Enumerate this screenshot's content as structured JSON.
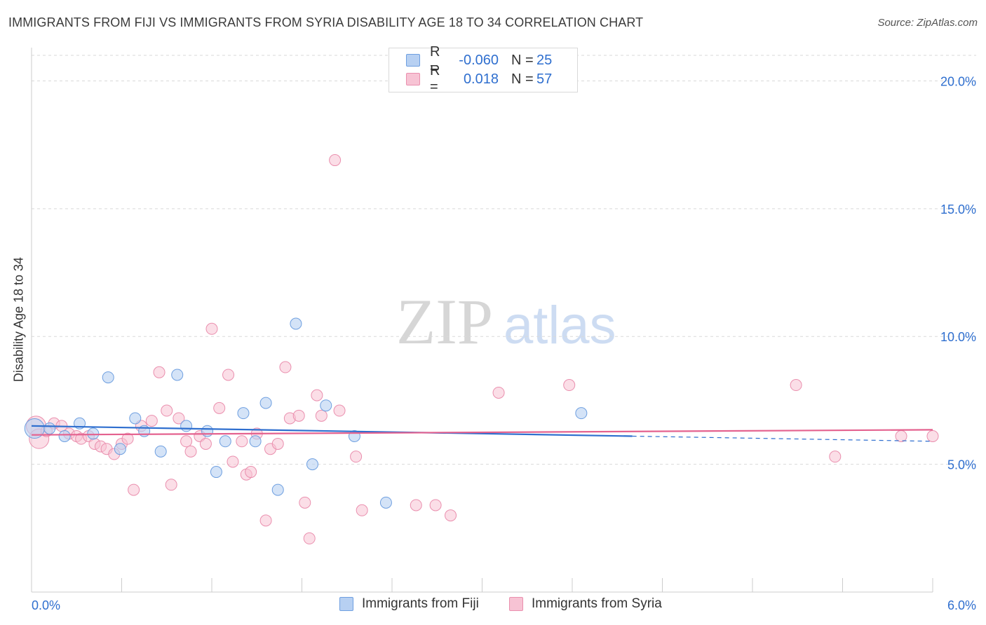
{
  "title": "IMMIGRANTS FROM FIJI VS IMMIGRANTS FROM SYRIA DISABILITY AGE 18 TO 34 CORRELATION CHART",
  "source": "Source: ZipAtlas.com",
  "watermark": {
    "zip": "ZIP",
    "atlas": "atlas"
  },
  "legend_top": {
    "rows": [
      {
        "r_label": "R =",
        "r_value": "-0.060",
        "n_label": "N =",
        "n_value": "25"
      },
      {
        "r_label": "R =",
        "r_value": "0.018",
        "n_label": "N =",
        "n_value": "57"
      }
    ]
  },
  "colors": {
    "fiji_fill": "#b7d0f2",
    "fiji_stroke": "#6e9fe0",
    "fiji_line": "#2f6fcf",
    "syria_fill": "#f7c3d4",
    "syria_stroke": "#ea8fae",
    "syria_line": "#e4628f",
    "grid": "#d9d9d9",
    "tick_label": "#2f6fcf"
  },
  "chart_data": {
    "type": "scatter",
    "title": "IMMIGRANTS FROM FIJI VS IMMIGRANTS FROM SYRIA DISABILITY AGE 18 TO 34 CORRELATION CHART",
    "xlabel": "",
    "ylabel": "Disability Age 18 to 34",
    "xlim": [
      0,
      6
    ],
    "ylim": [
      0,
      21
    ],
    "x_tick_labels": [
      "0.0%",
      "6.0%"
    ],
    "y_ticks": [
      5,
      10,
      15,
      20
    ],
    "y_tick_labels": [
      "5.0%",
      "10.0%",
      "15.0%",
      "20.0%"
    ],
    "grid": true,
    "legend_placement": "bottom",
    "series": [
      {
        "name": "Immigrants from Fiji",
        "color": "#6e9fe0",
        "points": [
          {
            "x": 0.02,
            "y": 6.4
          },
          {
            "x": 0.12,
            "y": 6.4
          },
          {
            "x": 0.22,
            "y": 6.1
          },
          {
            "x": 0.32,
            "y": 6.6
          },
          {
            "x": 0.41,
            "y": 6.2
          },
          {
            "x": 0.51,
            "y": 8.4
          },
          {
            "x": 0.59,
            "y": 5.6
          },
          {
            "x": 0.69,
            "y": 6.8
          },
          {
            "x": 0.75,
            "y": 6.3
          },
          {
            "x": 0.86,
            "y": 5.5
          },
          {
            "x": 0.97,
            "y": 8.5
          },
          {
            "x": 1.03,
            "y": 6.5
          },
          {
            "x": 1.17,
            "y": 6.3
          },
          {
            "x": 1.23,
            "y": 4.7
          },
          {
            "x": 1.29,
            "y": 5.9
          },
          {
            "x": 1.41,
            "y": 7.0
          },
          {
            "x": 1.49,
            "y": 5.9
          },
          {
            "x": 1.56,
            "y": 7.4
          },
          {
            "x": 1.64,
            "y": 4.0
          },
          {
            "x": 1.76,
            "y": 10.5
          },
          {
            "x": 1.87,
            "y": 5.0
          },
          {
            "x": 1.96,
            "y": 7.3
          },
          {
            "x": 2.15,
            "y": 6.1
          },
          {
            "x": 2.36,
            "y": 3.5
          },
          {
            "x": 3.66,
            "y": 7.0
          }
        ],
        "trend": {
          "x": [
            0,
            4.0
          ],
          "y": [
            6.5,
            6.1
          ]
        },
        "trend_dashed": {
          "x": [
            4.0,
            6.0
          ],
          "y": [
            6.1,
            5.9
          ]
        }
      },
      {
        "name": "Immigrants from Syria",
        "color": "#ea8fae",
        "points": [
          {
            "x": 0.03,
            "y": 6.5
          },
          {
            "x": 0.05,
            "y": 6.0
          },
          {
            "x": 0.1,
            "y": 6.3
          },
          {
            "x": 0.15,
            "y": 6.6
          },
          {
            "x": 0.2,
            "y": 6.5
          },
          {
            "x": 0.25,
            "y": 6.2
          },
          {
            "x": 0.3,
            "y": 6.1
          },
          {
            "x": 0.33,
            "y": 6.0
          },
          {
            "x": 0.38,
            "y": 6.1
          },
          {
            "x": 0.42,
            "y": 5.8
          },
          {
            "x": 0.46,
            "y": 5.7
          },
          {
            "x": 0.5,
            "y": 5.6
          },
          {
            "x": 0.55,
            "y": 5.4
          },
          {
            "x": 0.6,
            "y": 5.8
          },
          {
            "x": 0.64,
            "y": 6.0
          },
          {
            "x": 0.68,
            "y": 4.0
          },
          {
            "x": 0.73,
            "y": 6.5
          },
          {
            "x": 0.8,
            "y": 6.7
          },
          {
            "x": 0.85,
            "y": 8.6
          },
          {
            "x": 0.9,
            "y": 7.1
          },
          {
            "x": 0.93,
            "y": 4.2
          },
          {
            "x": 0.98,
            "y": 6.8
          },
          {
            "x": 1.03,
            "y": 5.9
          },
          {
            "x": 1.06,
            "y": 5.5
          },
          {
            "x": 1.12,
            "y": 6.1
          },
          {
            "x": 1.16,
            "y": 5.8
          },
          {
            "x": 1.2,
            "y": 10.3
          },
          {
            "x": 1.25,
            "y": 7.2
          },
          {
            "x": 1.31,
            "y": 8.5
          },
          {
            "x": 1.34,
            "y": 5.1
          },
          {
            "x": 1.4,
            "y": 5.9
          },
          {
            "x": 1.43,
            "y": 4.6
          },
          {
            "x": 1.46,
            "y": 4.7
          },
          {
            "x": 1.5,
            "y": 6.2
          },
          {
            "x": 1.56,
            "y": 2.8
          },
          {
            "x": 1.59,
            "y": 5.6
          },
          {
            "x": 1.64,
            "y": 5.8
          },
          {
            "x": 1.69,
            "y": 8.8
          },
          {
            "x": 1.72,
            "y": 6.8
          },
          {
            "x": 1.78,
            "y": 6.9
          },
          {
            "x": 1.82,
            "y": 3.5
          },
          {
            "x": 1.85,
            "y": 2.1
          },
          {
            "x": 1.9,
            "y": 7.7
          },
          {
            "x": 1.93,
            "y": 6.9
          },
          {
            "x": 2.02,
            "y": 16.9
          },
          {
            "x": 2.05,
            "y": 7.1
          },
          {
            "x": 2.16,
            "y": 5.3
          },
          {
            "x": 2.2,
            "y": 3.2
          },
          {
            "x": 2.56,
            "y": 3.4
          },
          {
            "x": 2.69,
            "y": 3.4
          },
          {
            "x": 2.79,
            "y": 3.0
          },
          {
            "x": 3.11,
            "y": 7.8
          },
          {
            "x": 3.58,
            "y": 8.1
          },
          {
            "x": 5.09,
            "y": 8.1
          },
          {
            "x": 5.35,
            "y": 5.3
          },
          {
            "x": 5.79,
            "y": 6.1
          },
          {
            "x": 6.0,
            "y": 6.1
          }
        ],
        "trend": {
          "x": [
            0,
            6.0
          ],
          "y": [
            6.15,
            6.35
          ]
        }
      }
    ]
  },
  "legend_bottom": {
    "items": [
      {
        "label": "Immigrants from Fiji",
        "swatch": "fiji"
      },
      {
        "label": "Immigrants from Syria",
        "swatch": "syria"
      }
    ]
  }
}
